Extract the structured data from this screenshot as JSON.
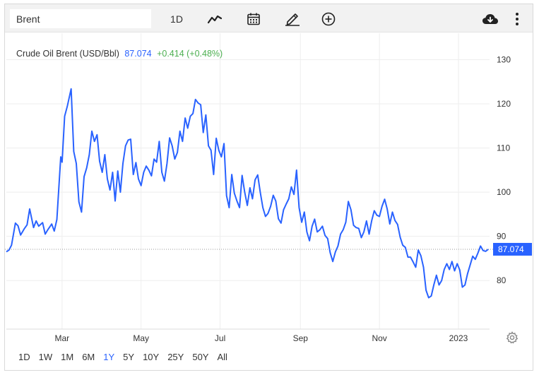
{
  "toolbar": {
    "search_value": "Brent",
    "interval_label": "1D",
    "icons": [
      "line-chart-icon",
      "calendar-icon",
      "pencil-icon",
      "plus-circle-icon",
      "cloud-download-icon",
      "more-vertical-icon"
    ]
  },
  "legend": {
    "name": "Crude Oil Brent (USD/Bbl)",
    "price": "87.074",
    "change": "+0.414 (+0.48%)"
  },
  "price_tag": "87.074",
  "ranges": [
    "1D",
    "1W",
    "1M",
    "6M",
    "1Y",
    "5Y",
    "10Y",
    "25Y",
    "50Y",
    "All"
  ],
  "active_range": "1Y",
  "colors": {
    "line": "#2962ff",
    "change_positive": "#4caf50",
    "grid": "#eeeeee",
    "toolbar_bg": "#f2f2f2"
  },
  "chart_data": {
    "type": "line",
    "title": "",
    "xlabel": "",
    "ylabel": "",
    "x_ticks": [
      "Mar",
      "May",
      "Jul",
      "Sep",
      "Nov",
      "2023"
    ],
    "x_tick_dates": [
      "2022-03-01",
      "2022-05-01",
      "2022-07-01",
      "2022-09-01",
      "2022-11-01",
      "2023-01-01"
    ],
    "y_ticks": [
      80,
      90,
      100,
      110,
      120,
      130
    ],
    "ylim": [
      69,
      136
    ],
    "xlim": [
      "2022-01-17",
      "2023-01-25"
    ],
    "grid": true,
    "last_value": 87.074,
    "series": [
      {
        "name": "",
        "points": [
          [
            "2022-01-17",
            86.5
          ],
          [
            "2022-01-19",
            86.9
          ],
          [
            "2022-01-21",
            88.0
          ],
          [
            "2022-01-24",
            93.0
          ],
          [
            "2022-01-26",
            92.4
          ],
          [
            "2022-01-28",
            90.3
          ],
          [
            "2022-01-31",
            91.8
          ],
          [
            "2022-02-02",
            92.6
          ],
          [
            "2022-02-04",
            96.2
          ],
          [
            "2022-02-07",
            92.0
          ],
          [
            "2022-02-09",
            93.5
          ],
          [
            "2022-02-11",
            92.3
          ],
          [
            "2022-02-14",
            93.1
          ],
          [
            "2022-02-16",
            90.5
          ],
          [
            "2022-02-18",
            91.5
          ],
          [
            "2022-02-21",
            92.8
          ],
          [
            "2022-02-23",
            91.2
          ],
          [
            "2022-02-25",
            93.8
          ],
          [
            "2022-02-28",
            108.0
          ],
          [
            "2022-03-01",
            106.8
          ],
          [
            "2022-03-03",
            117.2
          ],
          [
            "2022-03-05",
            119.4
          ],
          [
            "2022-03-08",
            123.4
          ],
          [
            "2022-03-10",
            109.2
          ],
          [
            "2022-03-12",
            106.5
          ],
          [
            "2022-03-14",
            97.8
          ],
          [
            "2022-03-16",
            95.5
          ],
          [
            "2022-03-18",
            103.5
          ],
          [
            "2022-03-20",
            105.5
          ],
          [
            "2022-03-22",
            108.5
          ],
          [
            "2022-03-24",
            113.8
          ],
          [
            "2022-03-26",
            111.5
          ],
          [
            "2022-03-28",
            113.0
          ],
          [
            "2022-03-30",
            107.0
          ],
          [
            "2022-04-01",
            104.5
          ],
          [
            "2022-04-03",
            108.5
          ],
          [
            "2022-04-05",
            103.0
          ],
          [
            "2022-04-07",
            100.5
          ],
          [
            "2022-04-09",
            104.5
          ],
          [
            "2022-04-11",
            98.0
          ],
          [
            "2022-04-13",
            104.8
          ],
          [
            "2022-04-15",
            100.0
          ],
          [
            "2022-04-17",
            106.5
          ],
          [
            "2022-04-19",
            110.5
          ],
          [
            "2022-04-21",
            111.8
          ],
          [
            "2022-04-23",
            112.0
          ],
          [
            "2022-04-25",
            104.0
          ],
          [
            "2022-04-27",
            106.7
          ],
          [
            "2022-04-29",
            103.0
          ],
          [
            "2022-05-01",
            101.5
          ],
          [
            "2022-05-03",
            104.5
          ],
          [
            "2022-05-05",
            105.9
          ],
          [
            "2022-05-07",
            105.0
          ],
          [
            "2022-05-09",
            103.7
          ],
          [
            "2022-05-11",
            107.5
          ],
          [
            "2022-05-13",
            106.8
          ],
          [
            "2022-05-15",
            111.5
          ],
          [
            "2022-05-17",
            104.5
          ],
          [
            "2022-05-19",
            102.5
          ],
          [
            "2022-05-21",
            106.5
          ],
          [
            "2022-05-23",
            112.3
          ],
          [
            "2022-05-25",
            110.5
          ],
          [
            "2022-05-27",
            107.5
          ],
          [
            "2022-05-29",
            109.0
          ],
          [
            "2022-05-31",
            113.8
          ],
          [
            "2022-06-02",
            111.5
          ],
          [
            "2022-06-04",
            116.8
          ],
          [
            "2022-06-06",
            114.5
          ],
          [
            "2022-06-08",
            117.2
          ],
          [
            "2022-06-10",
            117.8
          ],
          [
            "2022-06-12",
            121.0
          ],
          [
            "2022-06-14",
            120.2
          ],
          [
            "2022-06-16",
            119.8
          ],
          [
            "2022-06-18",
            113.5
          ],
          [
            "2022-06-20",
            117.5
          ],
          [
            "2022-06-22",
            110.5
          ],
          [
            "2022-06-24",
            109.5
          ],
          [
            "2022-06-26",
            104.0
          ],
          [
            "2022-06-28",
            112.2
          ],
          [
            "2022-06-30",
            109.5
          ],
          [
            "2022-07-02",
            108.0
          ],
          [
            "2022-07-04",
            111.0
          ],
          [
            "2022-07-06",
            99.2
          ],
          [
            "2022-07-08",
            96.5
          ],
          [
            "2022-07-10",
            104.0
          ],
          [
            "2022-07-12",
            99.8
          ],
          [
            "2022-07-14",
            98.0
          ],
          [
            "2022-07-16",
            96.5
          ],
          [
            "2022-07-18",
            103.8
          ],
          [
            "2022-07-20",
            100.0
          ],
          [
            "2022-07-22",
            97.0
          ],
          [
            "2022-07-24",
            101.0
          ],
          [
            "2022-07-26",
            98.5
          ],
          [
            "2022-07-28",
            102.8
          ],
          [
            "2022-07-30",
            103.9
          ],
          [
            "2022-08-01",
            100.0
          ],
          [
            "2022-08-03",
            96.5
          ],
          [
            "2022-08-05",
            94.5
          ],
          [
            "2022-08-07",
            95.2
          ],
          [
            "2022-08-09",
            96.8
          ],
          [
            "2022-08-11",
            99.3
          ],
          [
            "2022-08-13",
            98.0
          ],
          [
            "2022-08-15",
            94.0
          ],
          [
            "2022-08-17",
            93.0
          ],
          [
            "2022-08-19",
            96.0
          ],
          [
            "2022-08-21",
            97.3
          ],
          [
            "2022-08-23",
            98.5
          ],
          [
            "2022-08-25",
            101.2
          ],
          [
            "2022-08-27",
            99.5
          ],
          [
            "2022-08-29",
            105.0
          ],
          [
            "2022-08-31",
            96.5
          ],
          [
            "2022-09-02",
            93.2
          ],
          [
            "2022-09-04",
            95.5
          ],
          [
            "2022-09-06",
            91.0
          ],
          [
            "2022-09-08",
            89.0
          ],
          [
            "2022-09-10",
            92.3
          ],
          [
            "2022-09-12",
            93.9
          ],
          [
            "2022-09-14",
            91.0
          ],
          [
            "2022-09-16",
            91.5
          ],
          [
            "2022-09-18",
            92.3
          ],
          [
            "2022-09-20",
            90.2
          ],
          [
            "2022-09-22",
            89.5
          ],
          [
            "2022-09-24",
            86.3
          ],
          [
            "2022-09-26",
            84.3
          ],
          [
            "2022-09-28",
            86.5
          ],
          [
            "2022-09-30",
            87.8
          ],
          [
            "2022-10-02",
            90.5
          ],
          [
            "2022-10-04",
            91.5
          ],
          [
            "2022-10-06",
            93.2
          ],
          [
            "2022-10-08",
            97.9
          ],
          [
            "2022-10-10",
            96.0
          ],
          [
            "2022-10-12",
            92.5
          ],
          [
            "2022-10-14",
            92.0
          ],
          [
            "2022-10-16",
            91.8
          ],
          [
            "2022-10-18",
            89.7
          ],
          [
            "2022-10-20",
            91.0
          ],
          [
            "2022-10-22",
            93.5
          ],
          [
            "2022-10-24",
            90.5
          ],
          [
            "2022-10-26",
            93.5
          ],
          [
            "2022-10-28",
            95.8
          ],
          [
            "2022-10-30",
            94.8
          ],
          [
            "2022-11-01",
            94.5
          ],
          [
            "2022-11-03",
            96.8
          ],
          [
            "2022-11-05",
            98.4
          ],
          [
            "2022-11-07",
            96.2
          ],
          [
            "2022-11-09",
            92.8
          ],
          [
            "2022-11-11",
            95.5
          ],
          [
            "2022-11-13",
            93.6
          ],
          [
            "2022-11-15",
            92.7
          ],
          [
            "2022-11-17",
            89.8
          ],
          [
            "2022-11-19",
            88.0
          ],
          [
            "2022-11-21",
            87.5
          ],
          [
            "2022-11-23",
            85.3
          ],
          [
            "2022-11-25",
            85.3
          ],
          [
            "2022-11-27",
            84.2
          ],
          [
            "2022-11-29",
            83.0
          ],
          [
            "2022-12-01",
            86.9
          ],
          [
            "2022-12-03",
            85.6
          ],
          [
            "2022-12-05",
            83.0
          ],
          [
            "2022-12-07",
            77.8
          ],
          [
            "2022-12-09",
            76.1
          ],
          [
            "2022-12-11",
            76.5
          ],
          [
            "2022-12-13",
            79.0
          ],
          [
            "2022-12-15",
            81.2
          ],
          [
            "2022-12-17",
            79.0
          ],
          [
            "2022-12-19",
            80.0
          ],
          [
            "2022-12-21",
            82.5
          ],
          [
            "2022-12-23",
            83.8
          ],
          [
            "2022-12-25",
            82.5
          ],
          [
            "2022-12-27",
            84.3
          ],
          [
            "2022-12-29",
            82.2
          ],
          [
            "2022-12-31",
            83.8
          ],
          [
            "2023-01-02",
            82.4
          ],
          [
            "2023-01-04",
            78.5
          ],
          [
            "2023-01-06",
            79.0
          ],
          [
            "2023-01-08",
            81.5
          ],
          [
            "2023-01-10",
            83.5
          ],
          [
            "2023-01-12",
            85.5
          ],
          [
            "2023-01-14",
            84.8
          ],
          [
            "2023-01-16",
            86.2
          ],
          [
            "2023-01-18",
            87.8
          ],
          [
            "2023-01-20",
            86.8
          ],
          [
            "2023-01-22",
            86.6
          ],
          [
            "2023-01-24",
            87.074
          ]
        ]
      }
    ]
  }
}
